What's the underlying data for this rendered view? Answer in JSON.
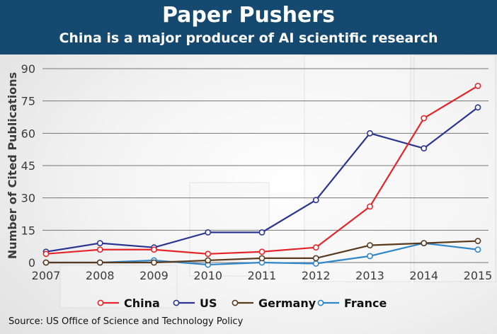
{
  "header": {
    "title": "Paper Pushers",
    "subtitle": "China is a major producer of AI scientific research"
  },
  "footer": {
    "source": "Source: US Office of Science and Technology Policy"
  },
  "colors": {
    "banner": "#16496f",
    "China": "#e4252b",
    "US": "#2b3590",
    "Germany": "#5a3a1c",
    "France": "#2e86c8"
  },
  "chart_data": {
    "type": "line",
    "title": "Paper Pushers",
    "subtitle": "China is a major producer of AI scientific research",
    "xlabel": "",
    "ylabel": "Number of Cited Publications",
    "x": [
      2007,
      2008,
      2009,
      2010,
      2011,
      2012,
      2013,
      2014,
      2015
    ],
    "xtick_labels": [
      "2007",
      "2008",
      "2009",
      "2010",
      "2011",
      "2012",
      "2013",
      "2014",
      "2015"
    ],
    "ylim": [
      0,
      90
    ],
    "yticks": [
      0,
      15,
      30,
      45,
      60,
      75,
      90
    ],
    "grid": true,
    "legend_position": "bottom",
    "series": [
      {
        "name": "China",
        "color": "#e4252b",
        "values": [
          4,
          6,
          6,
          4,
          5,
          7,
          26,
          67,
          82
        ]
      },
      {
        "name": "US",
        "color": "#2b3590",
        "values": [
          5,
          9,
          7,
          14,
          14,
          29,
          60,
          53,
          72
        ]
      },
      {
        "name": "Germany",
        "color": "#5a3a1c",
        "values": [
          0,
          0,
          0,
          1,
          2,
          2,
          8,
          9,
          10
        ]
      },
      {
        "name": "France",
        "color": "#2e86c8",
        "values": [
          0,
          0,
          1,
          -1,
          0,
          -0.5,
          3,
          9,
          6
        ]
      }
    ]
  }
}
